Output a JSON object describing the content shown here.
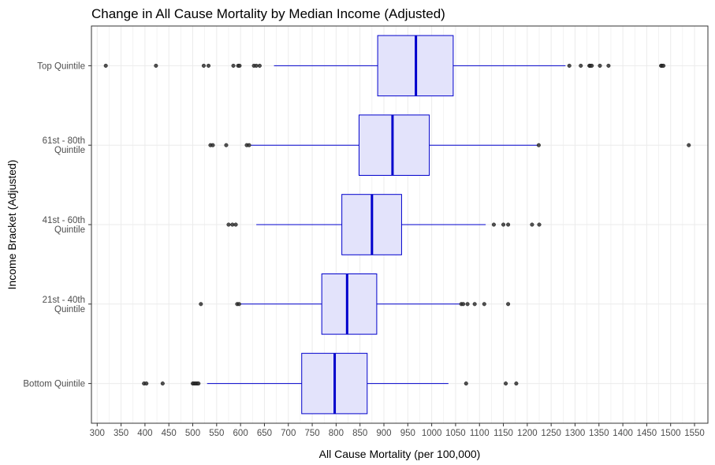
{
  "chart_data": {
    "type": "boxplot",
    "orientation": "horizontal",
    "title": "Change in All Cause Mortality by Median Income (Adjusted)",
    "xlabel": "All Cause Mortality (per 100,000)",
    "ylabel": "Income Bracket (Adjusted)",
    "xlim": [
      288,
      1578
    ],
    "xticks": [
      300,
      350,
      400,
      450,
      500,
      550,
      600,
      650,
      700,
      750,
      800,
      850,
      900,
      950,
      1000,
      1050,
      1100,
      1150,
      1200,
      1250,
      1300,
      1350,
      1400,
      1450,
      1500,
      1550
    ],
    "grid": true,
    "colors": {
      "box_fill": "#e3e3fb",
      "box_line": "#0000cc",
      "outlier": "#333333",
      "grid": "#ebebeb",
      "border": "#333333"
    },
    "categories": [
      {
        "label_lines": [
          "Bottom Quintile"
        ],
        "whisker_low": 530,
        "q1": 728,
        "median": 797,
        "q3": 865,
        "whisker_high": 1035,
        "outliers": [
          398,
          403,
          437,
          500,
          503,
          506,
          509,
          512,
          1072,
          1155,
          1177
        ]
      },
      {
        "label_lines": [
          "21st - 40th",
          "Quintile"
        ],
        "whisker_low": 600,
        "q1": 770,
        "median": 823,
        "q3": 885,
        "whisker_high": 1060,
        "outliers": [
          517,
          593,
          597,
          1062,
          1066,
          1075,
          1090,
          1110,
          1160
        ]
      },
      {
        "label_lines": [
          "41st - 60th",
          "Quintile"
        ],
        "whisker_low": 633,
        "q1": 812,
        "median": 875,
        "q3": 937,
        "whisker_high": 1113,
        "outliers": [
          575,
          583,
          590,
          1130,
          1150,
          1160,
          1210,
          1225
        ]
      },
      {
        "label_lines": [
          "61st - 80th",
          "Quintile"
        ],
        "whisker_low": 622,
        "q1": 848,
        "median": 918,
        "q3": 995,
        "whisker_high": 1222,
        "outliers": [
          537,
          542,
          570,
          613,
          618,
          1224,
          1538
        ]
      },
      {
        "label_lines": [
          "Top Quintile"
        ],
        "whisker_low": 670,
        "q1": 887,
        "median": 967,
        "q3": 1045,
        "whisker_high": 1280,
        "outliers": [
          318,
          423,
          523,
          533,
          585,
          595,
          598,
          628,
          633,
          640,
          1288,
          1312,
          1330,
          1332,
          1335,
          1352,
          1370,
          1480,
          1482,
          1485
        ]
      }
    ]
  }
}
